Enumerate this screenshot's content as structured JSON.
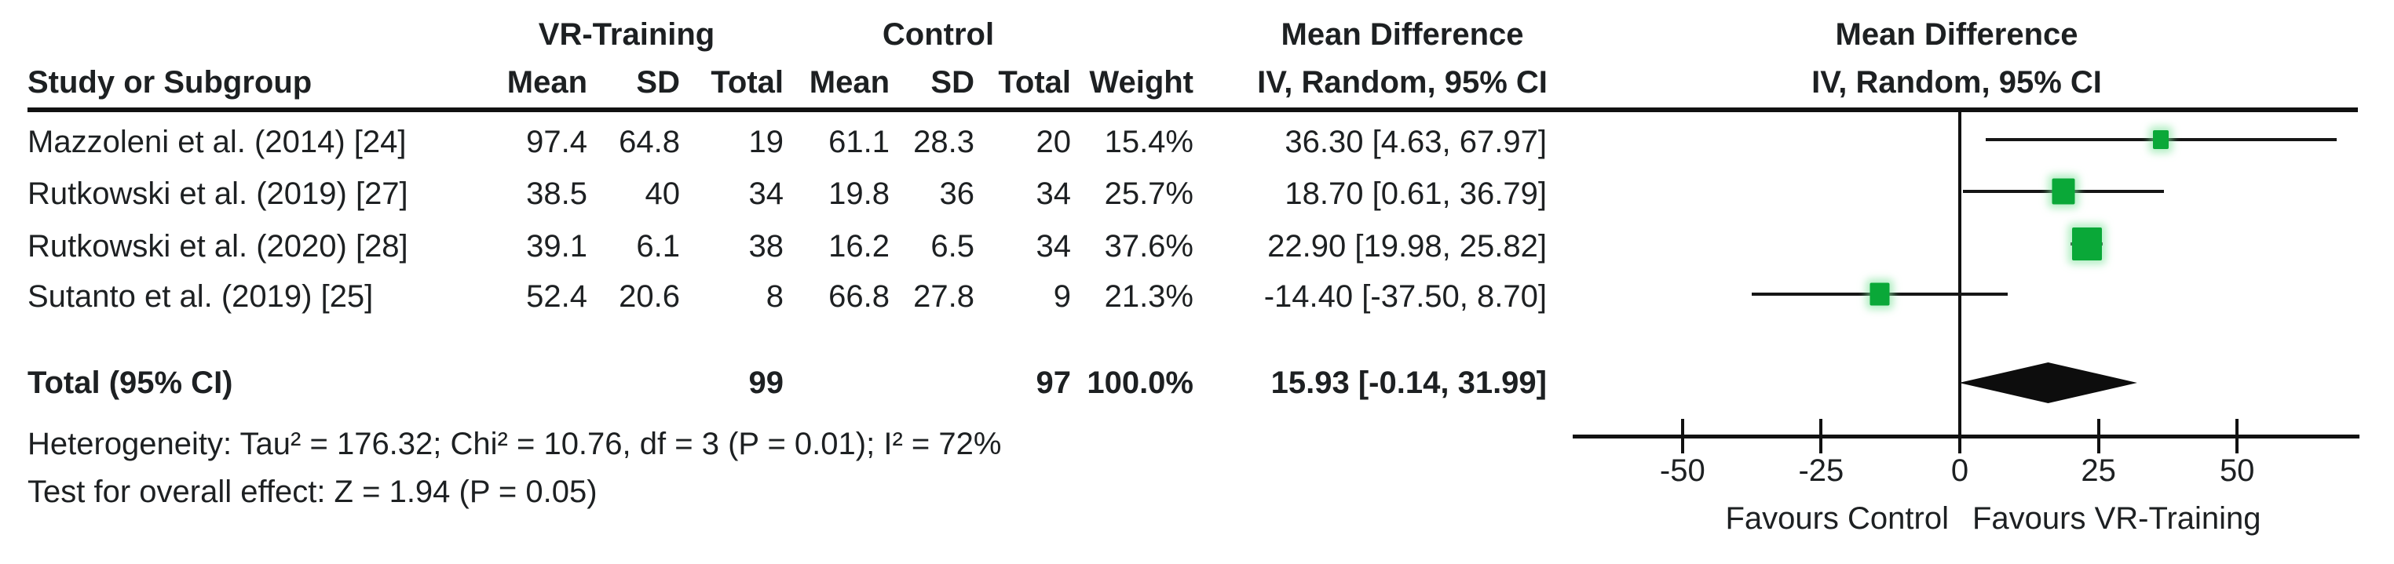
{
  "table": {
    "header": {
      "study": "Study or Subgroup",
      "group_vr": "VR-Training",
      "group_control": "Control",
      "vr_mean": "Mean",
      "vr_sd": "SD",
      "vr_total": "Total",
      "c_mean": "Mean",
      "c_sd": "SD",
      "c_total": "Total",
      "weight": "Weight",
      "md_label": "Mean Difference",
      "md_sub": "IV, Random, 95% CI"
    },
    "rows": [
      {
        "study": "Mazzoleni et al. (2014) [24]",
        "vr_mean": "97.4",
        "vr_sd": "64.8",
        "vr_total": "19",
        "c_mean": "61.1",
        "c_sd": "28.3",
        "c_total": "20",
        "weight": "15.4%",
        "md_ci": "36.30 [4.63, 67.97]"
      },
      {
        "study": "Rutkowski et al. (2019) [27]",
        "vr_mean": "38.5",
        "vr_sd": "40",
        "vr_total": "34",
        "c_mean": "19.8",
        "c_sd": "36",
        "c_total": "34",
        "weight": "25.7%",
        "md_ci": "18.70 [0.61, 36.79]"
      },
      {
        "study": "Rutkowski et al. (2020) [28]",
        "vr_mean": "39.1",
        "vr_sd": "6.1",
        "vr_total": "38",
        "c_mean": "16.2",
        "c_sd": "6.5",
        "c_total": "34",
        "weight": "37.6%",
        "md_ci": "22.90 [19.98, 25.82]"
      },
      {
        "study": "Sutanto et al. (2019) [25]",
        "vr_mean": "52.4",
        "vr_sd": "20.6",
        "vr_total": "8",
        "c_mean": "66.8",
        "c_sd": "27.8",
        "c_total": "9",
        "weight": "21.3%",
        "md_ci": "-14.40 [-37.50, 8.70]"
      }
    ],
    "total": {
      "label": "Total (95% CI)",
      "vr_total": "99",
      "c_total": "97",
      "weight": "100.0%",
      "md_ci": "15.93 [-0.14, 31.99]"
    },
    "heterogeneity": "Heterogeneity: Tau² = 176.32; Chi² = 10.76, df = 3 (P = 0.01); I² = 72%",
    "overall_effect": "Test for overall effect: Z = 1.94 (P = 0.05)"
  },
  "plot": {
    "header_line1": "Mean Difference",
    "header_line2": "IV, Random, 95% CI",
    "favours_left": "Favours Control",
    "favours_right": "Favours VR-Training"
  },
  "chart_data": {
    "type": "forest",
    "effect_measure": "Mean Difference, IV, Random, 95% CI",
    "xticks": [
      -50,
      -25,
      0,
      25,
      50
    ],
    "xlim": [
      -69.5,
      72
    ],
    "axis_label_left": "Favours Control",
    "axis_label_right": "Favours VR-Training",
    "marker_color": "#0aa838",
    "marker_halo": "#7fe39b",
    "studies": [
      {
        "label": "Mazzoleni et al. (2014) [24]",
        "md": 36.3,
        "ci_low": 4.63,
        "ci_high": 67.97,
        "weight_pct": 15.4
      },
      {
        "label": "Rutkowski et al. (2019) [27]",
        "md": 18.7,
        "ci_low": 0.61,
        "ci_high": 36.79,
        "weight_pct": 25.7
      },
      {
        "label": "Rutkowski et al. (2020) [28]",
        "md": 22.9,
        "ci_low": 19.98,
        "ci_high": 25.82,
        "weight_pct": 37.6
      },
      {
        "label": "Sutanto et al. (2019) [25]",
        "md": -14.4,
        "ci_low": -37.5,
        "ci_high": 8.7,
        "weight_pct": 21.3
      }
    ],
    "total": {
      "label": "Total (95% CI)",
      "md": 15.93,
      "ci_low": -0.14,
      "ci_high": 31.99,
      "weight_pct": 100.0
    },
    "heterogeneity": {
      "tau2": 176.32,
      "chi2": 10.76,
      "df": 3,
      "p": 0.01,
      "i2_pct": 72
    },
    "overall_effect": {
      "z": 1.94,
      "p": 0.05
    }
  }
}
